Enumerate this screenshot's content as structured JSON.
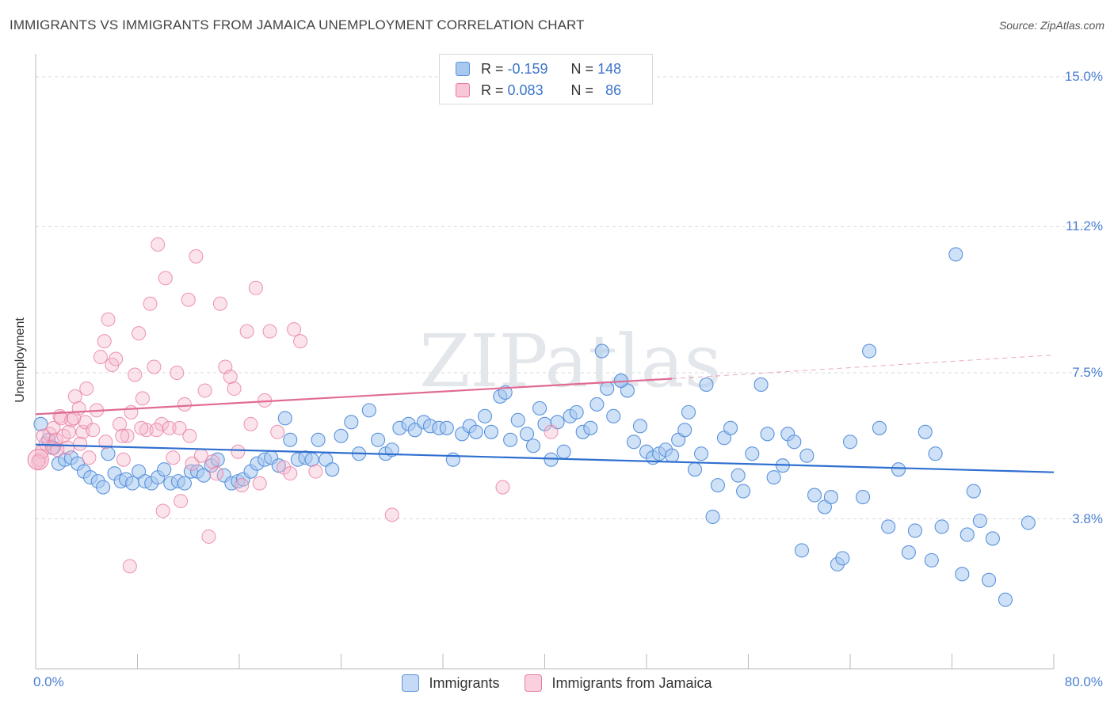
{
  "title": "IMMIGRANTS VS IMMIGRANTS FROM JAMAICA UNEMPLOYMENT CORRELATION CHART",
  "source": "Source: ZipAtlas.com",
  "watermark": "ZIPatlas",
  "colors": {
    "blue": "#5b93dc",
    "blue_fill": "#a8c8f0",
    "pink": "#e8799e",
    "pink_fill": "#f4b8cc",
    "blue_line": "#2f6fd0",
    "pink_line": "#e06b93",
    "tick_text": "#4a7fd0"
  },
  "stats": {
    "row1": {
      "r_label": "R = ",
      "r_value": "-0.159",
      "n_label": "N = ",
      "n_value": "148"
    },
    "row2": {
      "r_label": "R = ",
      "r_value": "0.083",
      "n_label": "N = ",
      "n_value": "86"
    }
  },
  "legend": {
    "series1": "Immigrants",
    "series2": "Immigrants from Jamaica"
  },
  "chart_data": {
    "type": "scatter",
    "xlabel": "",
    "ylabel": "Unemployment",
    "xlim": [
      0,
      80
    ],
    "ylim": [
      0,
      15.5
    ],
    "x_tick_labels": {
      "min": "0.0%",
      "max": "80.0%"
    },
    "y_ticks": [
      {
        "value": 3.8,
        "label": "3.8%"
      },
      {
        "value": 7.5,
        "label": "7.5%"
      },
      {
        "value": 11.2,
        "label": "11.2%"
      },
      {
        "value": 15.0,
        "label": "15.0%"
      }
    ],
    "grid": true,
    "legend_position": "bottom",
    "series": [
      {
        "name": "Immigrants",
        "trend": [
          [
            0,
            5.68
          ],
          [
            80,
            4.98
          ]
        ],
        "points": [
          [
            0.4,
            6.2
          ],
          [
            1.0,
            5.8
          ],
          [
            1.4,
            5.6
          ],
          [
            1.8,
            5.2
          ],
          [
            2.3,
            5.3
          ],
          [
            2.8,
            5.35
          ],
          [
            3.3,
            5.2
          ],
          [
            3.8,
            5.0
          ],
          [
            4.3,
            4.85
          ],
          [
            4.9,
            4.75
          ],
          [
            5.3,
            4.6
          ],
          [
            5.7,
            5.45
          ],
          [
            6.2,
            4.95
          ],
          [
            6.7,
            4.75
          ],
          [
            7.1,
            4.8
          ],
          [
            7.6,
            4.7
          ],
          [
            8.1,
            5.0
          ],
          [
            8.6,
            4.75
          ],
          [
            9.1,
            4.7
          ],
          [
            9.6,
            4.85
          ],
          [
            10.1,
            5.05
          ],
          [
            10.6,
            4.7
          ],
          [
            11.2,
            4.75
          ],
          [
            11.7,
            4.7
          ],
          [
            12.2,
            5.0
          ],
          [
            12.7,
            5.0
          ],
          [
            13.2,
            4.9
          ],
          [
            13.8,
            5.15
          ],
          [
            14.3,
            5.3
          ],
          [
            14.8,
            4.9
          ],
          [
            15.4,
            4.7
          ],
          [
            15.9,
            4.75
          ],
          [
            16.3,
            4.8
          ],
          [
            16.9,
            5.0
          ],
          [
            17.4,
            5.2
          ],
          [
            18.0,
            5.3
          ],
          [
            18.5,
            5.35
          ],
          [
            19.1,
            5.15
          ],
          [
            19.6,
            6.35
          ],
          [
            20.0,
            5.8
          ],
          [
            20.6,
            5.3
          ],
          [
            21.2,
            5.35
          ],
          [
            21.7,
            5.3
          ],
          [
            22.2,
            5.8
          ],
          [
            22.8,
            5.3
          ],
          [
            23.3,
            5.05
          ],
          [
            24.0,
            5.9
          ],
          [
            24.8,
            6.25
          ],
          [
            25.4,
            5.45
          ],
          [
            26.2,
            6.55
          ],
          [
            26.9,
            5.8
          ],
          [
            27.5,
            5.45
          ],
          [
            28.0,
            5.55
          ],
          [
            28.6,
            6.1
          ],
          [
            29.3,
            6.2
          ],
          [
            29.8,
            6.05
          ],
          [
            30.5,
            6.25
          ],
          [
            31.0,
            6.15
          ],
          [
            31.7,
            6.1
          ],
          [
            32.3,
            6.1
          ],
          [
            32.8,
            5.3
          ],
          [
            33.5,
            5.95
          ],
          [
            34.1,
            6.15
          ],
          [
            34.6,
            6.0
          ],
          [
            35.3,
            6.4
          ],
          [
            35.8,
            6.0
          ],
          [
            36.5,
            6.9
          ],
          [
            36.9,
            7.0
          ],
          [
            37.3,
            5.8
          ],
          [
            37.9,
            6.3
          ],
          [
            38.6,
            5.95
          ],
          [
            39.1,
            5.65
          ],
          [
            39.6,
            6.6
          ],
          [
            40.0,
            6.2
          ],
          [
            40.5,
            5.3
          ],
          [
            41.0,
            6.25
          ],
          [
            41.5,
            5.5
          ],
          [
            42.0,
            6.4
          ],
          [
            42.5,
            6.5
          ],
          [
            43.0,
            6.0
          ],
          [
            43.6,
            6.1
          ],
          [
            44.1,
            6.7
          ],
          [
            44.5,
            8.05
          ],
          [
            44.9,
            7.1
          ],
          [
            45.4,
            6.4
          ],
          [
            46.0,
            7.3
          ],
          [
            46.5,
            7.05
          ],
          [
            47.0,
            5.75
          ],
          [
            47.5,
            6.15
          ],
          [
            48.0,
            5.5
          ],
          [
            48.5,
            5.35
          ],
          [
            49.0,
            5.45
          ],
          [
            49.5,
            5.55
          ],
          [
            50.0,
            5.4
          ],
          [
            50.5,
            5.8
          ],
          [
            51.0,
            6.05
          ],
          [
            51.3,
            6.5
          ],
          [
            51.8,
            5.05
          ],
          [
            52.3,
            5.45
          ],
          [
            52.7,
            7.2
          ],
          [
            53.2,
            3.85
          ],
          [
            53.6,
            4.65
          ],
          [
            54.1,
            5.85
          ],
          [
            54.6,
            6.1
          ],
          [
            55.2,
            4.9
          ],
          [
            55.6,
            4.5
          ],
          [
            56.3,
            5.45
          ],
          [
            57.0,
            7.2
          ],
          [
            57.5,
            5.95
          ],
          [
            58.0,
            4.85
          ],
          [
            58.7,
            5.15
          ],
          [
            59.1,
            5.95
          ],
          [
            59.6,
            5.75
          ],
          [
            60.2,
            3.0
          ],
          [
            60.6,
            5.4
          ],
          [
            61.2,
            4.4
          ],
          [
            62.0,
            4.1
          ],
          [
            62.5,
            4.35
          ],
          [
            63.0,
            2.65
          ],
          [
            63.4,
            2.8
          ],
          [
            64.0,
            5.75
          ],
          [
            65.0,
            4.35
          ],
          [
            65.5,
            8.05
          ],
          [
            66.3,
            6.1
          ],
          [
            67.0,
            3.6
          ],
          [
            67.8,
            5.05
          ],
          [
            68.6,
            2.95
          ],
          [
            69.1,
            3.5
          ],
          [
            69.9,
            6.0
          ],
          [
            70.4,
            2.75
          ],
          [
            70.7,
            5.45
          ],
          [
            71.2,
            3.6
          ],
          [
            72.8,
            2.4
          ],
          [
            73.2,
            3.4
          ],
          [
            73.7,
            4.5
          ],
          [
            74.2,
            3.75
          ],
          [
            74.9,
            2.25
          ],
          [
            75.2,
            3.3
          ],
          [
            76.2,
            1.75
          ],
          [
            78.0,
            3.7
          ],
          [
            72.3,
            10.5
          ],
          [
            46.0,
            7.3
          ]
        ]
      },
      {
        "name": "Immigrants from Jamaica",
        "trend": [
          [
            0,
            6.45
          ],
          [
            50,
            7.35
          ]
        ],
        "trend_extension": [
          [
            50,
            7.35
          ],
          [
            80,
            7.95
          ]
        ],
        "points": [
          [
            0.3,
            5.3
          ],
          [
            0.5,
            5.5
          ],
          [
            0.8,
            5.7
          ],
          [
            1.1,
            5.95
          ],
          [
            1.4,
            6.1
          ],
          [
            1.6,
            5.8
          ],
          [
            1.9,
            6.4
          ],
          [
            2.2,
            5.9
          ],
          [
            2.5,
            5.6
          ],
          [
            2.8,
            6.3
          ],
          [
            3.1,
            6.9
          ],
          [
            3.4,
            6.6
          ],
          [
            3.7,
            6.0
          ],
          [
            3.9,
            6.25
          ],
          [
            4.2,
            5.35
          ],
          [
            4.5,
            6.05
          ],
          [
            4.8,
            6.55
          ],
          [
            5.1,
            7.9
          ],
          [
            5.4,
            8.3
          ],
          [
            5.7,
            8.85
          ],
          [
            6.0,
            7.7
          ],
          [
            6.3,
            7.85
          ],
          [
            6.6,
            6.2
          ],
          [
            6.9,
            5.3
          ],
          [
            7.2,
            5.9
          ],
          [
            7.5,
            6.5
          ],
          [
            7.8,
            7.45
          ],
          [
            8.1,
            8.5
          ],
          [
            8.4,
            6.85
          ],
          [
            8.7,
            6.05
          ],
          [
            9.0,
            9.25
          ],
          [
            9.3,
            7.65
          ],
          [
            9.6,
            10.75
          ],
          [
            9.9,
            6.2
          ],
          [
            10.2,
            9.9
          ],
          [
            10.5,
            6.1
          ],
          [
            10.8,
            5.35
          ],
          [
            11.1,
            7.5
          ],
          [
            11.4,
            4.25
          ],
          [
            11.7,
            6.7
          ],
          [
            12.0,
            9.35
          ],
          [
            12.3,
            5.2
          ],
          [
            12.6,
            10.45
          ],
          [
            13.0,
            5.4
          ],
          [
            13.3,
            7.05
          ],
          [
            13.6,
            3.35
          ],
          [
            13.9,
            5.25
          ],
          [
            14.2,
            4.95
          ],
          [
            14.5,
            9.25
          ],
          [
            14.9,
            7.65
          ],
          [
            15.3,
            7.4
          ],
          [
            15.6,
            7.1
          ],
          [
            15.9,
            5.5
          ],
          [
            16.2,
            4.65
          ],
          [
            16.6,
            8.55
          ],
          [
            16.9,
            6.2
          ],
          [
            17.3,
            9.65
          ],
          [
            17.6,
            4.7
          ],
          [
            18.0,
            6.8
          ],
          [
            18.4,
            8.55
          ],
          [
            19.0,
            6.0
          ],
          [
            19.5,
            5.1
          ],
          [
            20.0,
            4.95
          ],
          [
            20.3,
            8.6
          ],
          [
            20.8,
            8.3
          ],
          [
            22.0,
            5.0
          ],
          [
            28.0,
            3.9
          ],
          [
            36.7,
            4.6
          ],
          [
            40.5,
            6.0
          ],
          [
            1.3,
            5.6
          ],
          [
            2.0,
            6.35
          ],
          [
            3.0,
            6.35
          ],
          [
            4.0,
            7.1
          ],
          [
            6.8,
            5.9
          ],
          [
            8.3,
            6.1
          ],
          [
            9.5,
            6.05
          ],
          [
            10.0,
            4.0
          ],
          [
            11.3,
            6.1
          ],
          [
            12.1,
            5.9
          ],
          [
            5.5,
            5.75
          ],
          [
            7.4,
            2.6
          ],
          [
            0.2,
            5.25
          ],
          [
            0.6,
            5.9
          ],
          [
            1.7,
            5.55
          ],
          [
            2.6,
            6.0
          ],
          [
            3.5,
            5.7
          ]
        ]
      }
    ]
  }
}
